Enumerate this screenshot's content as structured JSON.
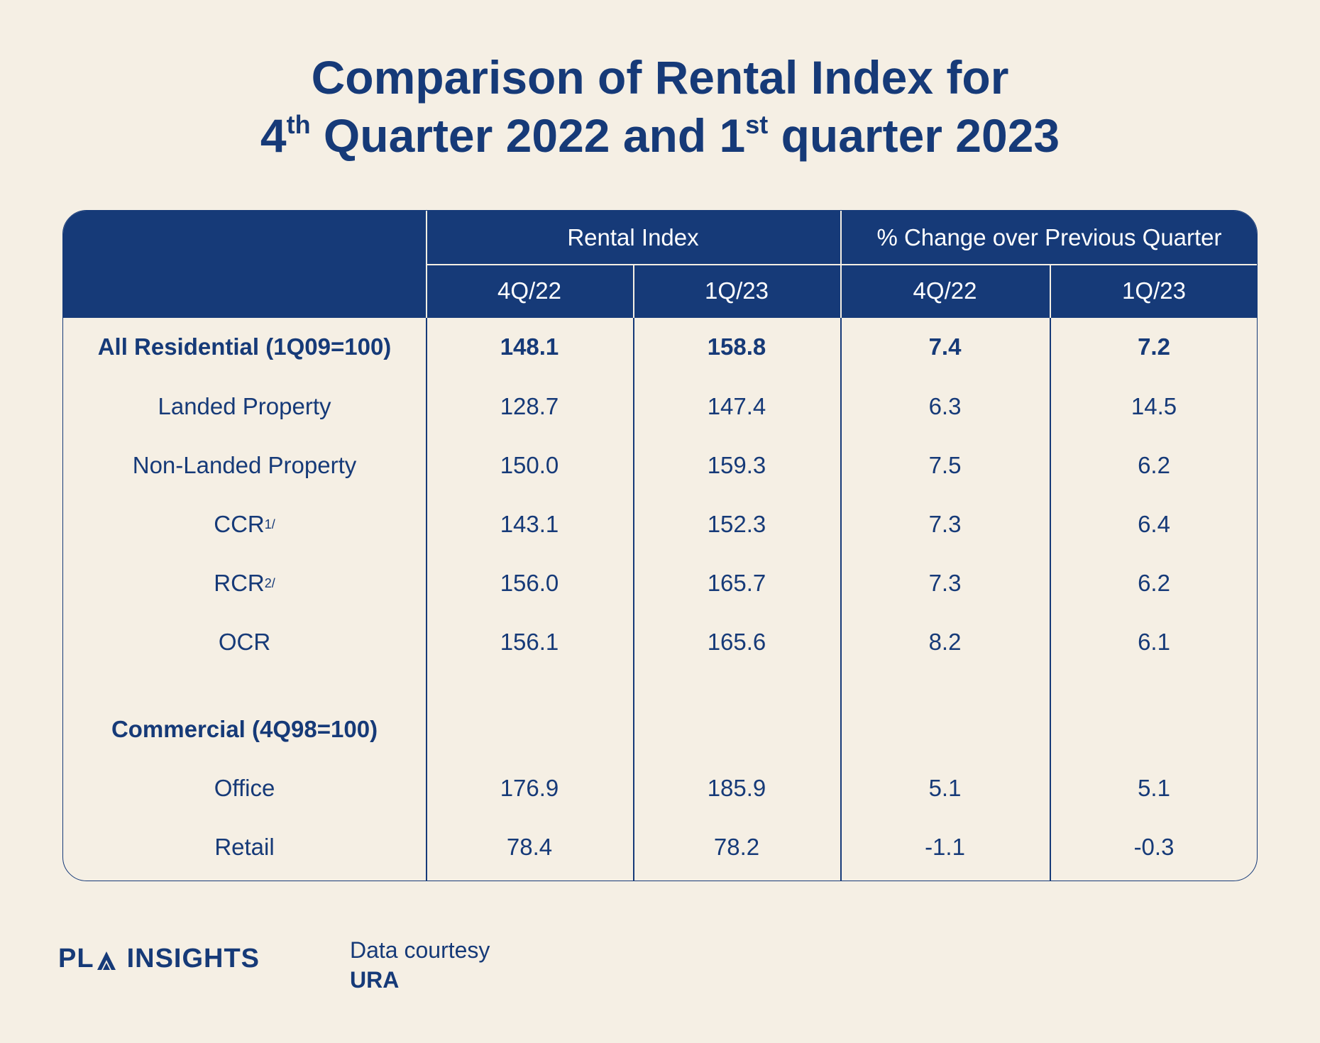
{
  "title": {
    "line1": "Comparison of Rental Index for",
    "line2_a": "4",
    "line2_sup1": "th",
    "line2_b": " Quarter 2022 and 1",
    "line2_sup2": "st",
    "line2_c": " quarter 2023"
  },
  "chart_data": {
    "type": "table",
    "group_headers": [
      "Rental Index",
      "% Change over Previous Quarter"
    ],
    "sub_headers": [
      "4Q/22",
      "1Q/23",
      "4Q/22",
      "1Q/23"
    ],
    "rows": [
      {
        "label": "All Residential (1Q09=100)",
        "sup": "",
        "bold": true,
        "values": [
          "148.1",
          "158.8",
          "7.4",
          "7.2"
        ]
      },
      {
        "label": "Landed Property",
        "sup": "",
        "bold": false,
        "values": [
          "128.7",
          "147.4",
          "6.3",
          "14.5"
        ]
      },
      {
        "label": "Non-Landed Property",
        "sup": "",
        "bold": false,
        "values": [
          "150.0",
          "159.3",
          "7.5",
          "6.2"
        ]
      },
      {
        "label": "CCR",
        "sup": "1/",
        "bold": false,
        "values": [
          "143.1",
          "152.3",
          "7.3",
          "6.4"
        ]
      },
      {
        "label": "RCR",
        "sup": "2/",
        "bold": false,
        "values": [
          "156.0",
          "165.7",
          "7.3",
          "6.2"
        ]
      },
      {
        "label": "OCR",
        "sup": "",
        "bold": false,
        "values": [
          "156.1",
          "165.6",
          "8.2",
          "6.1"
        ]
      },
      {
        "label": "Commercial (4Q98=100)",
        "sup": "",
        "bold": true,
        "values": [
          "",
          "",
          "",
          ""
        ]
      },
      {
        "label": "Office",
        "sup": "",
        "bold": false,
        "values": [
          "176.9",
          "185.9",
          "5.1",
          "5.1"
        ]
      },
      {
        "label": "Retail",
        "sup": "",
        "bold": false,
        "values": [
          "78.4",
          "78.2",
          "-1.1",
          "-0.3"
        ]
      }
    ]
  },
  "footer": {
    "logo_left": "PL",
    "logo_right": "INSIGHTS",
    "logo_icon": "arrow-mark-icon",
    "credit_line": "Data courtesy",
    "credit_source": "URA"
  },
  "colors": {
    "background": "#f5efe4",
    "navy": "#163a78",
    "header_text": "#ffffff"
  }
}
